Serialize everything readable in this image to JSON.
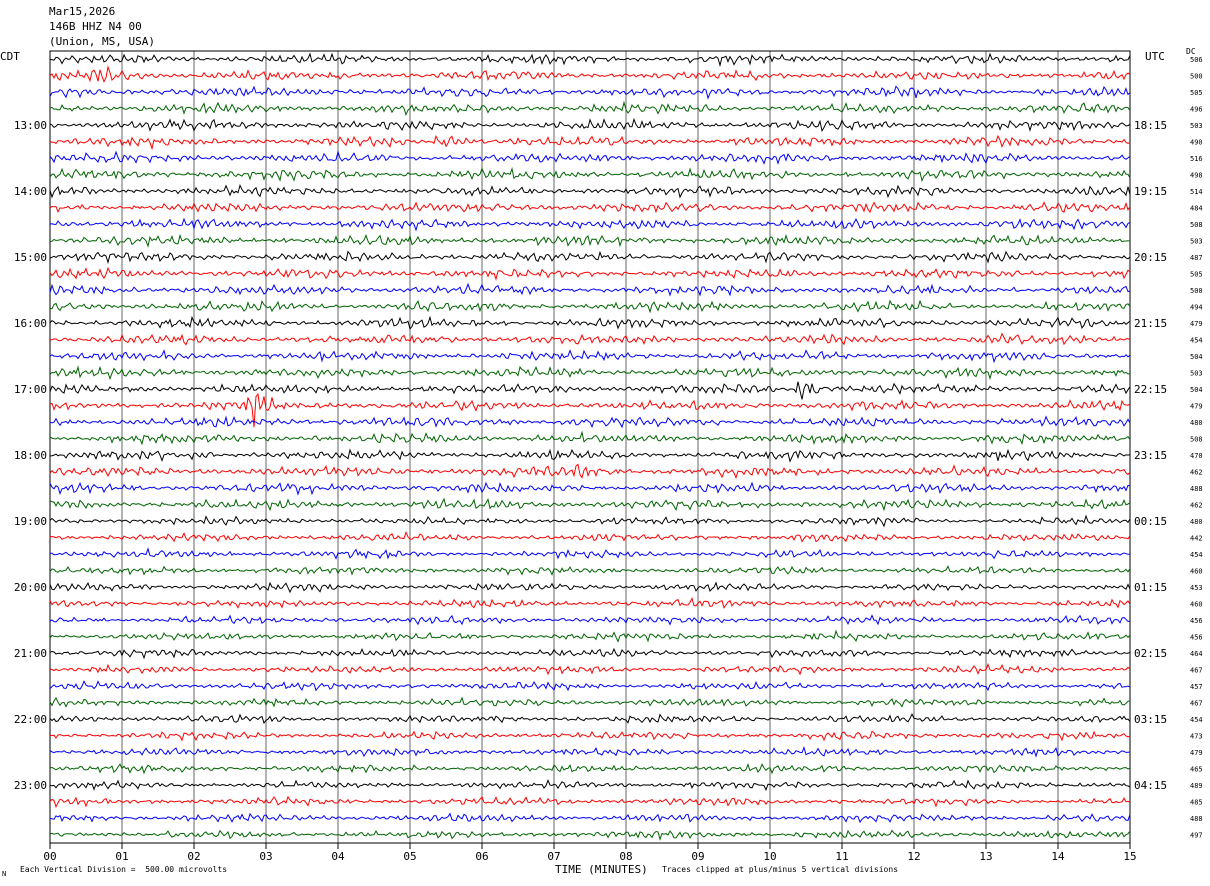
{
  "chart_data": {
    "type": "line",
    "title_lines": [
      "Mar15,2026",
      "146B HHZ N4 00",
      "(Union, MS, USA)"
    ],
    "left_timezone": "CDT",
    "right_timezone": "UTC",
    "dc_label": "DC",
    "xlabel": "TIME (MINUTES)",
    "xlim": [
      0,
      15
    ],
    "x_ticks": [
      "00",
      "01",
      "02",
      "03",
      "04",
      "05",
      "06",
      "07",
      "08",
      "09",
      "10",
      "11",
      "12",
      "13",
      "14",
      "15"
    ],
    "trace_colors": [
      "#000000",
      "#ff0000",
      "#0000ff",
      "#006400"
    ],
    "left_hour_labels": [
      "13:00",
      "14:00",
      "15:00",
      "16:00",
      "17:00",
      "18:00",
      "19:00",
      "20:00",
      "21:00",
      "22:00",
      "23:00"
    ],
    "right_hour_labels": [
      "18:15",
      "19:15",
      "20:15",
      "21:15",
      "22:15",
      "23:15",
      "00:15",
      "01:15",
      "02:15",
      "03:15",
      "04:15"
    ],
    "dc_offsets": [
      506,
      500,
      505,
      496,
      503,
      490,
      516,
      498,
      514,
      484,
      508,
      503,
      487,
      505,
      500,
      494,
      479,
      454,
      504,
      503,
      504,
      479,
      480,
      508,
      470,
      462,
      488,
      462,
      480,
      442,
      454,
      460,
      453,
      460,
      456,
      456,
      464,
      467,
      457,
      467,
      454,
      473,
      479,
      465,
      489,
      485,
      488,
      497
    ],
    "events": [
      {
        "trace": 1,
        "minute": 0.7,
        "amp": 1.6
      },
      {
        "trace": 21,
        "minute": 2.85,
        "amp": 3.2
      },
      {
        "trace": 20,
        "minute": 10.5,
        "amp": 2.6
      },
      {
        "trace": 25,
        "minute": 7.3,
        "amp": 1.5
      },
      {
        "trace": 5,
        "minute": 5.5,
        "amp": 1.3
      }
    ],
    "scale_note": "Each Vertical Division =  500.00 microvolts",
    "clip_note": "Traces clipped at plus/minus 5 vertical divisions"
  },
  "corner_mark": "N"
}
